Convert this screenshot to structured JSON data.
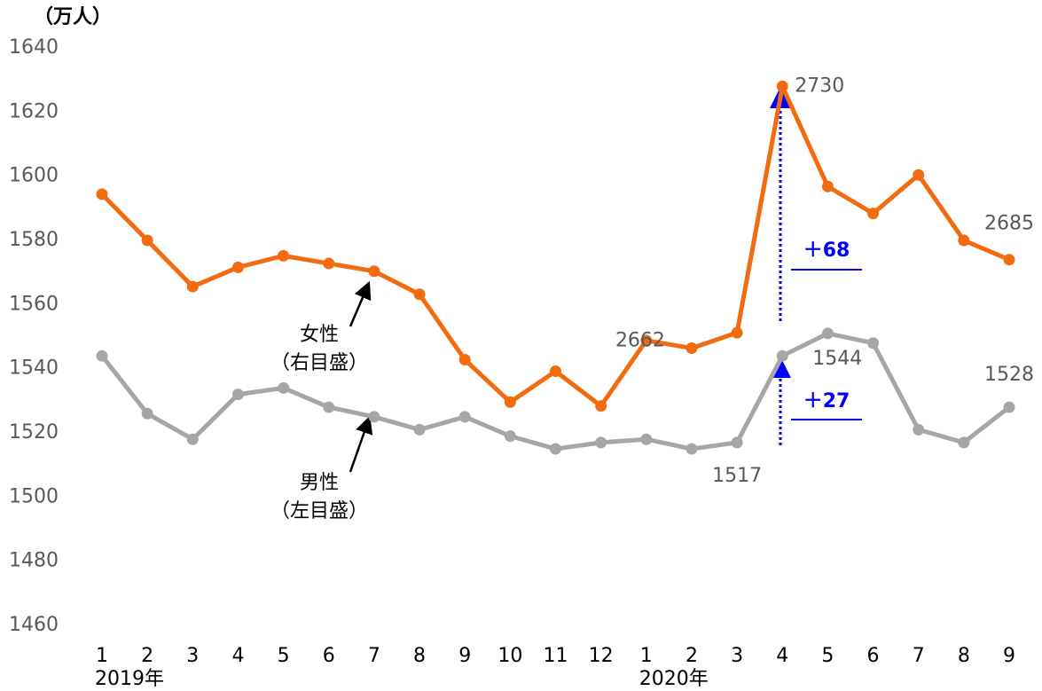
{
  "chart_data": {
    "type": "line",
    "unit_label": "（万人）",
    "categories": [
      "1",
      "2",
      "3",
      "4",
      "5",
      "6",
      "7",
      "8",
      "9",
      "10",
      "11",
      "12",
      "1",
      "2",
      "3",
      "4",
      "5",
      "6",
      "7",
      "8",
      "9"
    ],
    "year_labels": [
      {
        "index": 0,
        "label": "2019年"
      },
      {
        "index": 12,
        "label": "2020年"
      }
    ],
    "ylim": [
      1460,
      1640
    ],
    "yticks": [
      1460,
      1480,
      1500,
      1520,
      1540,
      1560,
      1580,
      1600,
      1620,
      1640
    ],
    "y2lim": [
      2590,
      2740
    ],
    "series": [
      {
        "name": "女性",
        "axis_note": "（右目盛）",
        "axis": "y2",
        "color": "#f26b0f",
        "values": [
          2702,
          2690,
          2678,
          2683,
          2686,
          2684,
          2682,
          2676,
          2659,
          2648,
          2656,
          2647,
          2664,
          2662,
          2666,
          2730,
          2704,
          2697,
          2707,
          2690,
          2685
        ],
        "value_labels": [
          null,
          null,
          null,
          null,
          null,
          null,
          null,
          null,
          null,
          null,
          null,
          null,
          null,
          "2662",
          null,
          "2730",
          null,
          null,
          null,
          null,
          "2685"
        ]
      },
      {
        "name": "男性",
        "axis_note": "（左目盛）",
        "color": "#a6a6a6",
        "values": [
          1544,
          1526,
          1518,
          1532,
          1534,
          1528,
          1525,
          1521,
          1525,
          1519,
          1515,
          1517,
          1518,
          1515,
          1517,
          1544,
          1551,
          1548,
          1521,
          1517,
          1528
        ],
        "value_labels": [
          null,
          null,
          null,
          null,
          null,
          null,
          null,
          null,
          null,
          null,
          null,
          null,
          null,
          null,
          "1517",
          "1544",
          null,
          null,
          null,
          null,
          "1528"
        ]
      }
    ],
    "annotations": [
      "＋68",
      "＋27"
    ]
  }
}
